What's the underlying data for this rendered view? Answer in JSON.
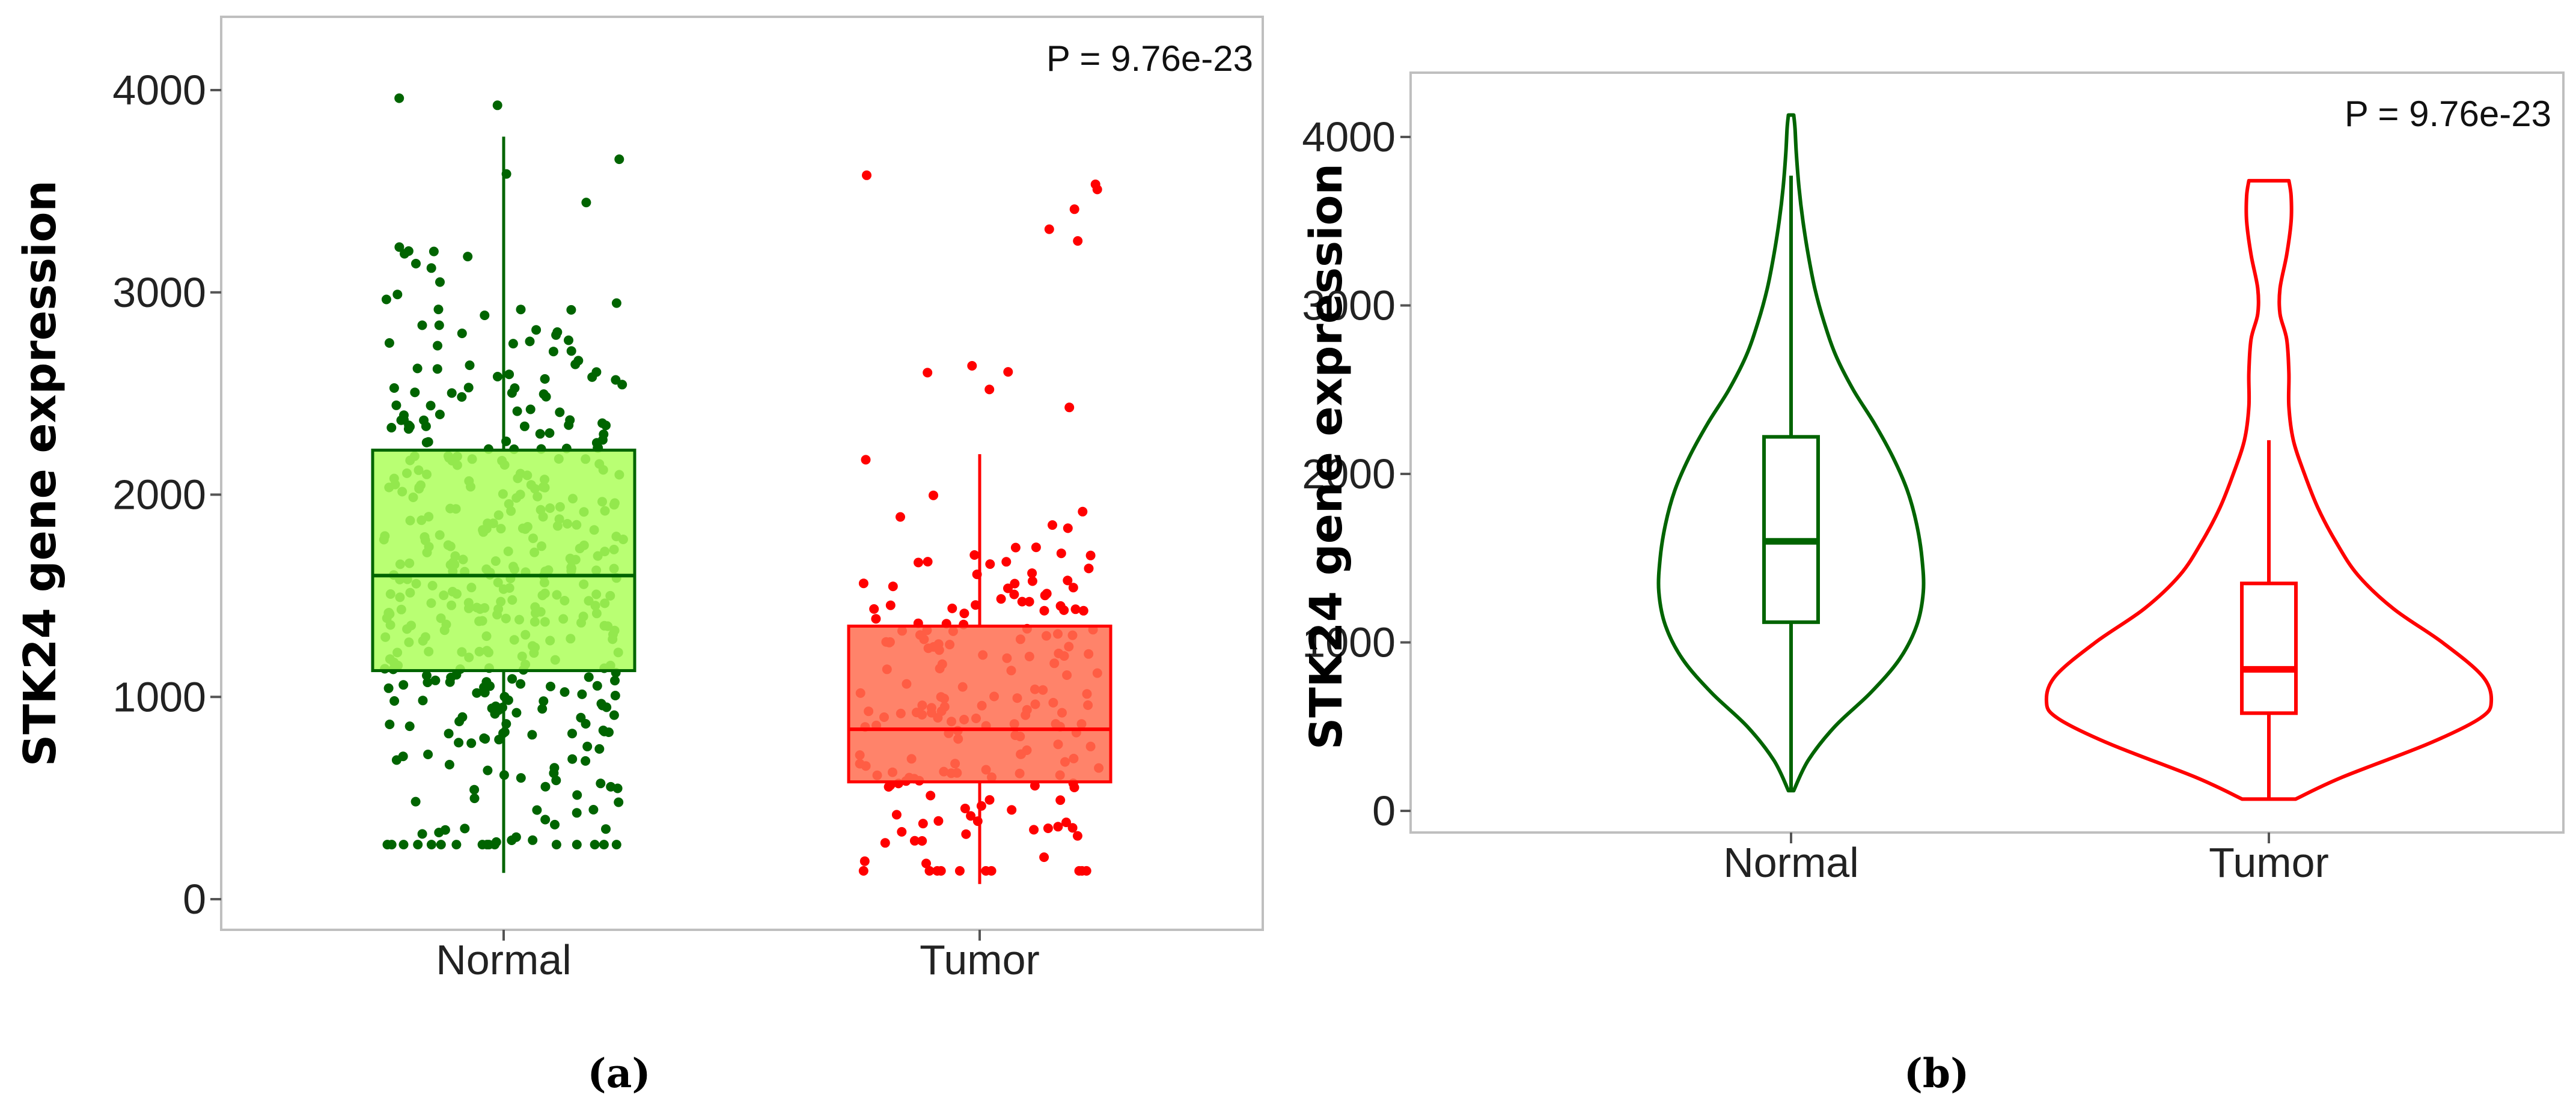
{
  "chart_data": [
    {
      "type": "box",
      "panel_label": "(a)",
      "ylabel": "STK24 gene expression",
      "ylim": [
        0,
        4000
      ],
      "yticks": [
        0,
        1000,
        2000,
        3000,
        4000
      ],
      "ytick_labels": [
        "0",
        "1000",
        "2000",
        "3000",
        "4000"
      ],
      "categories": [
        "Normal",
        "Tumor"
      ],
      "annotation": "P = 9.76e-23",
      "series": [
        {
          "category": "Normal",
          "color": "#006400",
          "fill": "#adff5a",
          "whisker_low": 130,
          "q1": 1130,
          "median": 1600,
          "q3": 2220,
          "whisker_high": 3770,
          "points_shown": true
        },
        {
          "category": "Tumor",
          "color": "#ff0000",
          "fill": "#ff6d50",
          "whisker_low": 75,
          "q1": 580,
          "median": 840,
          "q3": 1350,
          "whisker_high": 2200,
          "points_shown": true
        }
      ]
    },
    {
      "type": "violin",
      "panel_label": "(b)",
      "ylabel": "STK24 gene expression",
      "ylim": [
        0,
        4000
      ],
      "yticks": [
        0,
        1000,
        2000,
        3000,
        4000
      ],
      "ytick_labels": [
        "0",
        "1000",
        "2000",
        "3000",
        "4000"
      ],
      "categories": [
        "Normal",
        "Tumor"
      ],
      "annotation": "P = 9.76e-23",
      "series": [
        {
          "category": "Normal",
          "color": "#006400",
          "min": 120,
          "q1": 1120,
          "median": 1600,
          "q3": 2220,
          "max": 4130,
          "whisker_high": 3770,
          "density": [
            [
              120,
              0.02
            ],
            [
              300,
              0.13
            ],
            [
              500,
              0.33
            ],
            [
              700,
              0.6
            ],
            [
              900,
              0.82
            ],
            [
              1100,
              0.95
            ],
            [
              1300,
              1.0
            ],
            [
              1500,
              0.99
            ],
            [
              1700,
              0.95
            ],
            [
              1900,
              0.88
            ],
            [
              2100,
              0.77
            ],
            [
              2300,
              0.63
            ],
            [
              2500,
              0.47
            ],
            [
              2700,
              0.34
            ],
            [
              2900,
              0.25
            ],
            [
              3100,
              0.18
            ],
            [
              3300,
              0.13
            ],
            [
              3500,
              0.09
            ],
            [
              3700,
              0.06
            ],
            [
              3900,
              0.04
            ],
            [
              4050,
              0.03
            ],
            [
              4130,
              0.02
            ]
          ]
        },
        {
          "category": "Tumor",
          "color": "#ff0000",
          "min": 70,
          "q1": 580,
          "median": 840,
          "q3": 1350,
          "max": 3740,
          "whisker_high": 2200,
          "density": [
            [
              70,
              0.12
            ],
            [
              200,
              0.33
            ],
            [
              400,
              0.72
            ],
            [
              550,
              0.95
            ],
            [
              650,
              1.0
            ],
            [
              800,
              0.96
            ],
            [
              1000,
              0.78
            ],
            [
              1200,
              0.56
            ],
            [
              1400,
              0.4
            ],
            [
              1600,
              0.3
            ],
            [
              1800,
              0.22
            ],
            [
              2000,
              0.16
            ],
            [
              2200,
              0.11
            ],
            [
              2400,
              0.09
            ],
            [
              2600,
              0.09
            ],
            [
              2800,
              0.08
            ],
            [
              2950,
              0.05
            ],
            [
              3100,
              0.05
            ],
            [
              3300,
              0.08
            ],
            [
              3500,
              0.1
            ],
            [
              3650,
              0.1
            ],
            [
              3740,
              0.09
            ]
          ]
        }
      ]
    }
  ]
}
